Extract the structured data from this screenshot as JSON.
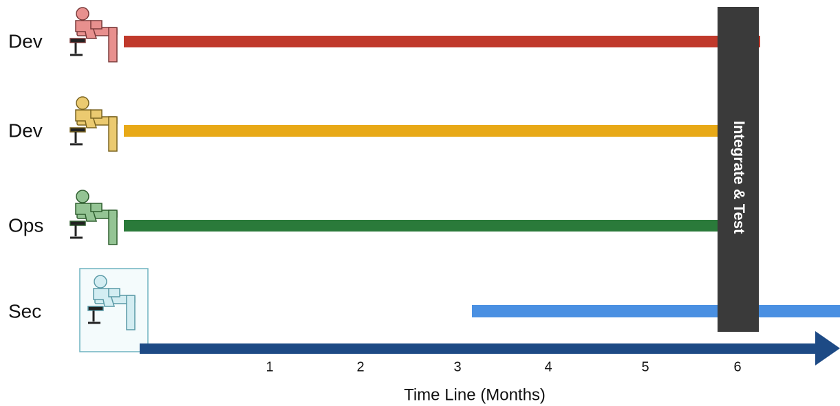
{
  "rows": [
    {
      "label": "Dev"
    },
    {
      "label": "Dev"
    },
    {
      "label": "Ops"
    },
    {
      "label": "Sec"
    }
  ],
  "phase": {
    "label": "Integrate & Test"
  },
  "axis": {
    "ticks": [
      "1",
      "2",
      "3",
      "4",
      "5",
      "6"
    ],
    "title": "Time Line (Months)"
  }
}
